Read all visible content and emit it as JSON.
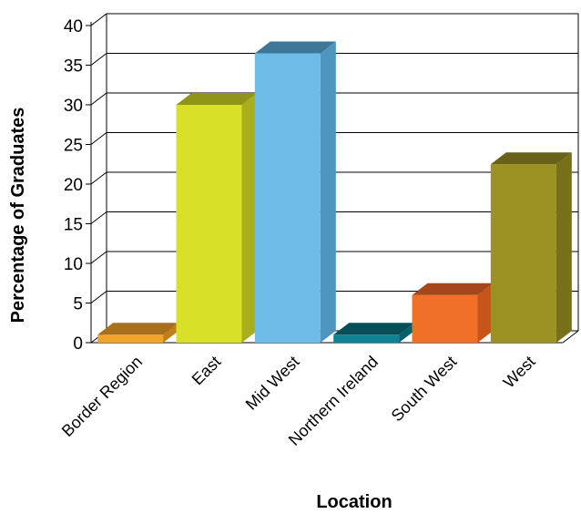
{
  "chart_data": {
    "type": "bar",
    "title": "",
    "xlabel": "Location",
    "ylabel": "Percentage of Graduates",
    "categories": [
      "Border Region",
      "East",
      "Mid West",
      "Northern Ireland",
      "South West",
      "West"
    ],
    "values": [
      1,
      30,
      36.5,
      1,
      6,
      22.5
    ],
    "ylim": [
      0,
      40
    ],
    "yticks": [
      0,
      5,
      10,
      15,
      20,
      25,
      30,
      35,
      40
    ],
    "grid": true,
    "legend": "none",
    "three_d": true,
    "colors": {
      "front": [
        "#f2a32a",
        "#d8e027",
        "#6dbde8",
        "#0f8394",
        "#f07027",
        "#9b9221"
      ],
      "side": [
        "#c07f18",
        "#a9ae1c",
        "#4f96bf",
        "#07606c",
        "#c75519",
        "#77701a"
      ],
      "top": [
        "#a8701a",
        "#8f941b",
        "#3f7799",
        "#064e58",
        "#a5461b",
        "#68611a"
      ]
    }
  }
}
